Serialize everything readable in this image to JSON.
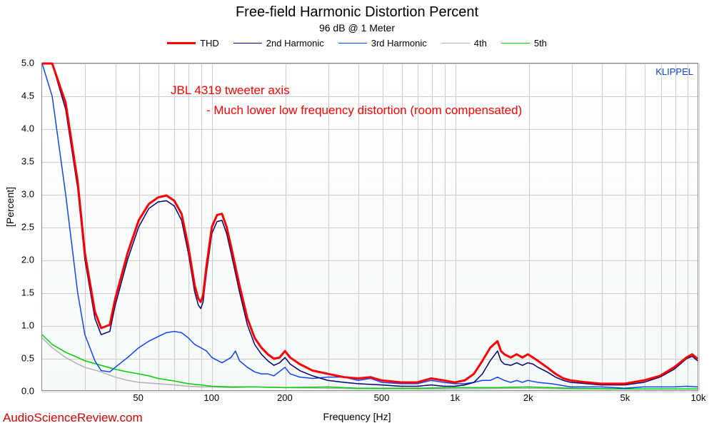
{
  "title": "Free-field Harmonic Distortion Percent",
  "subtitle": "96 dB @ 1 Meter",
  "watermark": "AudioScienceReview.com",
  "klippel_tag": "KLIPPEL",
  "x_label": "Frequency [Hz]",
  "y_label": "[Percent]",
  "annotation_line1": "JBL 4319 tweeter axis",
  "annotation_line2": "- Much lower low frequency distortion (room compensated)",
  "annotation_color": "#ff0000",
  "chart": {
    "type": "line-log-x",
    "xlim": [
      20,
      10000
    ],
    "ylim": [
      0,
      5.0
    ],
    "x_scale": "log",
    "y_scale": "linear",
    "y_ticks": [
      0.0,
      0.5,
      1.0,
      1.5,
      2.0,
      2.5,
      3.0,
      3.5,
      4.0,
      4.5,
      5.0
    ],
    "x_tick_labels": [
      {
        "v": 50,
        "label": "50"
      },
      {
        "v": 100,
        "label": "100"
      },
      {
        "v": 200,
        "label": "200"
      },
      {
        "v": 500,
        "label": "500"
      },
      {
        "v": 1000,
        "label": "1k"
      },
      {
        "v": 2000,
        "label": "2k"
      },
      {
        "v": 5000,
        "label": "5k"
      },
      {
        "v": 10000,
        "label": "10k"
      }
    ],
    "x_minor_gridlines": [
      30,
      40,
      60,
      70,
      80,
      90,
      300,
      400,
      600,
      700,
      800,
      900,
      3000,
      4000,
      6000,
      7000,
      8000,
      9000
    ],
    "background_gradient": [
      "#ffffff",
      "#f5f9f9"
    ],
    "grid_color": "#cccccc",
    "plot_border_color": "#888888",
    "legend": [
      {
        "label": "THD",
        "color": "#ff0000",
        "width": 3
      },
      {
        "label": "2nd Harmonic",
        "color": "#000070",
        "width": 1.5
      },
      {
        "label": "3rd Harmonic",
        "color": "#1040ff",
        "width": 1.5
      },
      {
        "label": "4th",
        "color": "#b0b0b0",
        "width": 1.5
      },
      {
        "label": "5th",
        "color": "#00d000",
        "width": 1.5
      }
    ],
    "series": {
      "thd": {
        "color": "#ff0000",
        "width": 3,
        "points": [
          [
            20,
            5.0
          ],
          [
            22,
            5.0
          ],
          [
            25,
            4.4
          ],
          [
            28,
            3.2
          ],
          [
            30,
            2.1
          ],
          [
            33,
            1.2
          ],
          [
            35,
            0.95
          ],
          [
            38,
            1.0
          ],
          [
            40,
            1.4
          ],
          [
            45,
            2.1
          ],
          [
            50,
            2.6
          ],
          [
            55,
            2.85
          ],
          [
            60,
            2.95
          ],
          [
            65,
            2.98
          ],
          [
            70,
            2.9
          ],
          [
            75,
            2.7
          ],
          [
            80,
            2.2
          ],
          [
            85,
            1.6
          ],
          [
            88,
            1.4
          ],
          [
            90,
            1.35
          ],
          [
            92,
            1.45
          ],
          [
            95,
            1.9
          ],
          [
            100,
            2.5
          ],
          [
            105,
            2.68
          ],
          [
            110,
            2.7
          ],
          [
            115,
            2.5
          ],
          [
            120,
            2.2
          ],
          [
            130,
            1.6
          ],
          [
            140,
            1.1
          ],
          [
            150,
            0.8
          ],
          [
            160,
            0.65
          ],
          [
            170,
            0.55
          ],
          [
            180,
            0.48
          ],
          [
            190,
            0.5
          ],
          [
            200,
            0.6
          ],
          [
            210,
            0.5
          ],
          [
            230,
            0.4
          ],
          [
            260,
            0.3
          ],
          [
            300,
            0.25
          ],
          [
            350,
            0.2
          ],
          [
            400,
            0.18
          ],
          [
            450,
            0.2
          ],
          [
            500,
            0.15
          ],
          [
            600,
            0.12
          ],
          [
            700,
            0.12
          ],
          [
            800,
            0.18
          ],
          [
            900,
            0.15
          ],
          [
            1000,
            0.12
          ],
          [
            1100,
            0.15
          ],
          [
            1200,
            0.25
          ],
          [
            1300,
            0.45
          ],
          [
            1400,
            0.65
          ],
          [
            1500,
            0.75
          ],
          [
            1550,
            0.6
          ],
          [
            1600,
            0.55
          ],
          [
            1700,
            0.5
          ],
          [
            1800,
            0.55
          ],
          [
            1900,
            0.5
          ],
          [
            2000,
            0.55
          ],
          [
            2100,
            0.5
          ],
          [
            2200,
            0.45
          ],
          [
            2400,
            0.35
          ],
          [
            2600,
            0.25
          ],
          [
            2800,
            0.18
          ],
          [
            3000,
            0.15
          ],
          [
            3500,
            0.12
          ],
          [
            4000,
            0.1
          ],
          [
            5000,
            0.1
          ],
          [
            6000,
            0.15
          ],
          [
            7000,
            0.22
          ],
          [
            8000,
            0.35
          ],
          [
            9000,
            0.5
          ],
          [
            9500,
            0.55
          ],
          [
            10000,
            0.48
          ]
        ]
      },
      "h2": {
        "color": "#000070",
        "width": 1.5,
        "points": [
          [
            20,
            5.0
          ],
          [
            22,
            5.0
          ],
          [
            25,
            4.3
          ],
          [
            28,
            3.1
          ],
          [
            30,
            2.0
          ],
          [
            33,
            1.1
          ],
          [
            35,
            0.85
          ],
          [
            38,
            0.9
          ],
          [
            40,
            1.3
          ],
          [
            45,
            2.0
          ],
          [
            50,
            2.5
          ],
          [
            55,
            2.78
          ],
          [
            60,
            2.88
          ],
          [
            65,
            2.9
          ],
          [
            70,
            2.82
          ],
          [
            75,
            2.6
          ],
          [
            80,
            2.1
          ],
          [
            85,
            1.5
          ],
          [
            88,
            1.3
          ],
          [
            90,
            1.25
          ],
          [
            92,
            1.35
          ],
          [
            95,
            1.8
          ],
          [
            100,
            2.4
          ],
          [
            105,
            2.58
          ],
          [
            110,
            2.6
          ],
          [
            115,
            2.4
          ],
          [
            120,
            2.1
          ],
          [
            130,
            1.5
          ],
          [
            140,
            1.0
          ],
          [
            150,
            0.7
          ],
          [
            160,
            0.55
          ],
          [
            170,
            0.45
          ],
          [
            180,
            0.38
          ],
          [
            190,
            0.42
          ],
          [
            200,
            0.5
          ],
          [
            210,
            0.4
          ],
          [
            230,
            0.3
          ],
          [
            260,
            0.22
          ],
          [
            300,
            0.15
          ],
          [
            350,
            0.12
          ],
          [
            400,
            0.1
          ],
          [
            500,
            0.08
          ],
          [
            600,
            0.06
          ],
          [
            700,
            0.06
          ],
          [
            800,
            0.08
          ],
          [
            900,
            0.06
          ],
          [
            1000,
            0.06
          ],
          [
            1100,
            0.08
          ],
          [
            1200,
            0.12
          ],
          [
            1300,
            0.25
          ],
          [
            1400,
            0.45
          ],
          [
            1500,
            0.6
          ],
          [
            1550,
            0.45
          ],
          [
            1600,
            0.4
          ],
          [
            1700,
            0.38
          ],
          [
            1800,
            0.42
          ],
          [
            1900,
            0.38
          ],
          [
            2000,
            0.42
          ],
          [
            2100,
            0.4
          ],
          [
            2200,
            0.35
          ],
          [
            2400,
            0.28
          ],
          [
            2600,
            0.2
          ],
          [
            2800,
            0.15
          ],
          [
            3000,
            0.12
          ],
          [
            3500,
            0.1
          ],
          [
            4000,
            0.08
          ],
          [
            5000,
            0.08
          ],
          [
            6000,
            0.12
          ],
          [
            7000,
            0.2
          ],
          [
            8000,
            0.32
          ],
          [
            9000,
            0.48
          ],
          [
            9500,
            0.52
          ],
          [
            10000,
            0.45
          ]
        ]
      },
      "h3": {
        "color": "#1040ff",
        "width": 1.5,
        "points": [
          [
            20,
            5.0
          ],
          [
            22,
            4.5
          ],
          [
            25,
            3.0
          ],
          [
            28,
            1.5
          ],
          [
            30,
            0.85
          ],
          [
            33,
            0.45
          ],
          [
            35,
            0.3
          ],
          [
            38,
            0.28
          ],
          [
            40,
            0.35
          ],
          [
            45,
            0.5
          ],
          [
            50,
            0.65
          ],
          [
            55,
            0.75
          ],
          [
            60,
            0.82
          ],
          [
            65,
            0.88
          ],
          [
            70,
            0.9
          ],
          [
            75,
            0.88
          ],
          [
            80,
            0.8
          ],
          [
            85,
            0.7
          ],
          [
            90,
            0.65
          ],
          [
            95,
            0.6
          ],
          [
            100,
            0.5
          ],
          [
            110,
            0.42
          ],
          [
            120,
            0.5
          ],
          [
            125,
            0.6
          ],
          [
            130,
            0.45
          ],
          [
            140,
            0.35
          ],
          [
            150,
            0.28
          ],
          [
            160,
            0.25
          ],
          [
            170,
            0.25
          ],
          [
            180,
            0.22
          ],
          [
            200,
            0.35
          ],
          [
            210,
            0.25
          ],
          [
            230,
            0.2
          ],
          [
            260,
            0.18
          ],
          [
            300,
            0.2
          ],
          [
            350,
            0.2
          ],
          [
            400,
            0.15
          ],
          [
            450,
            0.18
          ],
          [
            500,
            0.12
          ],
          [
            600,
            0.1
          ],
          [
            700,
            0.1
          ],
          [
            800,
            0.15
          ],
          [
            900,
            0.12
          ],
          [
            1000,
            0.1
          ],
          [
            1100,
            0.1
          ],
          [
            1200,
            0.12
          ],
          [
            1300,
            0.15
          ],
          [
            1400,
            0.15
          ],
          [
            1500,
            0.2
          ],
          [
            1600,
            0.15
          ],
          [
            1700,
            0.12
          ],
          [
            1800,
            0.15
          ],
          [
            1900,
            0.12
          ],
          [
            2000,
            0.15
          ],
          [
            2200,
            0.12
          ],
          [
            2500,
            0.1
          ],
          [
            3000,
            0.05
          ],
          [
            3500,
            0.05
          ],
          [
            4000,
            0.05
          ],
          [
            5000,
            0.03
          ],
          [
            6000,
            0.05
          ],
          [
            7000,
            0.05
          ],
          [
            8000,
            0.05
          ],
          [
            9000,
            0.06
          ],
          [
            10000,
            0.05
          ]
        ]
      },
      "h4": {
        "color": "#b0b0b0",
        "width": 1.5,
        "points": [
          [
            20,
            0.8
          ],
          [
            22,
            0.65
          ],
          [
            25,
            0.5
          ],
          [
            28,
            0.4
          ],
          [
            30,
            0.35
          ],
          [
            35,
            0.28
          ],
          [
            40,
            0.2
          ],
          [
            45,
            0.15
          ],
          [
            50,
            0.12
          ],
          [
            60,
            0.1
          ],
          [
            70,
            0.08
          ],
          [
            80,
            0.06
          ],
          [
            90,
            0.05
          ],
          [
            100,
            0.05
          ],
          [
            120,
            0.04
          ],
          [
            150,
            0.05
          ],
          [
            200,
            0.04
          ],
          [
            300,
            0.03
          ],
          [
            500,
            0.02
          ],
          [
            1000,
            0.02
          ],
          [
            2000,
            0.03
          ],
          [
            3000,
            0.02
          ],
          [
            5000,
            0.02
          ],
          [
            7000,
            0.02
          ],
          [
            10000,
            0.02
          ]
        ]
      },
      "h5": {
        "color": "#00d000",
        "width": 1.5,
        "points": [
          [
            20,
            0.85
          ],
          [
            22,
            0.7
          ],
          [
            25,
            0.58
          ],
          [
            28,
            0.5
          ],
          [
            30,
            0.45
          ],
          [
            35,
            0.38
          ],
          [
            40,
            0.32
          ],
          [
            45,
            0.28
          ],
          [
            50,
            0.25
          ],
          [
            55,
            0.22
          ],
          [
            60,
            0.18
          ],
          [
            70,
            0.14
          ],
          [
            80,
            0.1
          ],
          [
            90,
            0.08
          ],
          [
            100,
            0.06
          ],
          [
            120,
            0.05
          ],
          [
            150,
            0.05
          ],
          [
            200,
            0.04
          ],
          [
            300,
            0.05
          ],
          [
            400,
            0.03
          ],
          [
            500,
            0.03
          ],
          [
            700,
            0.03
          ],
          [
            1000,
            0.04
          ],
          [
            1500,
            0.04
          ],
          [
            2000,
            0.05
          ],
          [
            3000,
            0.03
          ],
          [
            5000,
            0.02
          ],
          [
            7000,
            0.02
          ],
          [
            10000,
            0.02
          ]
        ]
      }
    }
  }
}
